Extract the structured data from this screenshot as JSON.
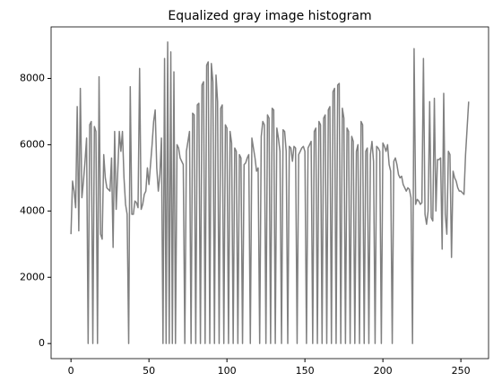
{
  "chart_data": {
    "type": "line",
    "title": "Equalized gray image histogram",
    "color": "#808080",
    "xlim": [
      -12.75,
      267.75
    ],
    "ylim": [
      -455,
      9555
    ],
    "xticks": [
      0,
      50,
      100,
      150,
      200,
      250
    ],
    "yticks": [
      0,
      2000,
      4000,
      6000,
      8000
    ],
    "x": [
      0,
      1,
      2,
      3,
      4,
      5,
      6,
      7,
      8,
      9,
      10,
      11,
      12,
      13,
      14,
      15,
      16,
      17,
      18,
      19,
      20,
      21,
      22,
      23,
      24,
      25,
      26,
      27,
      28,
      29,
      30,
      31,
      32,
      33,
      34,
      35,
      36,
      37,
      38,
      39,
      40,
      41,
      42,
      43,
      44,
      45,
      46,
      47,
      48,
      49,
      50,
      51,
      52,
      53,
      54,
      55,
      56,
      57,
      58,
      59,
      60,
      61,
      62,
      63,
      64,
      65,
      66,
      67,
      68,
      69,
      70,
      71,
      72,
      73,
      74,
      75,
      76,
      77,
      78,
      79,
      80,
      81,
      82,
      83,
      84,
      85,
      86,
      87,
      88,
      89,
      90,
      91,
      92,
      93,
      94,
      95,
      96,
      97,
      98,
      99,
      100,
      101,
      102,
      103,
      104,
      105,
      106,
      107,
      108,
      109,
      110,
      111,
      112,
      113,
      114,
      115,
      116,
      117,
      118,
      119,
      120,
      121,
      122,
      123,
      124,
      125,
      126,
      127,
      128,
      129,
      130,
      131,
      132,
      133,
      134,
      135,
      136,
      137,
      138,
      139,
      140,
      141,
      142,
      143,
      144,
      145,
      146,
      147,
      148,
      149,
      150,
      151,
      152,
      153,
      154,
      155,
      156,
      157,
      158,
      159,
      160,
      161,
      162,
      163,
      164,
      165,
      166,
      167,
      168,
      169,
      170,
      171,
      172,
      173,
      174,
      175,
      176,
      177,
      178,
      179,
      180,
      181,
      182,
      183,
      184,
      185,
      186,
      187,
      188,
      189,
      190,
      191,
      192,
      193,
      194,
      195,
      196,
      197,
      198,
      199,
      200,
      201,
      202,
      203,
      204,
      205,
      206,
      207,
      208,
      209,
      210,
      211,
      212,
      213,
      214,
      215,
      216,
      217,
      218,
      219,
      220,
      221,
      222,
      223,
      224,
      225,
      226,
      227,
      228,
      229,
      230,
      231,
      232,
      233,
      234,
      235,
      236,
      237,
      238,
      239,
      240,
      241,
      242,
      243,
      244,
      245,
      246,
      247,
      248,
      249,
      250,
      251,
      252,
      253,
      254,
      255
    ],
    "values": [
      3300,
      4900,
      4600,
      4100,
      7150,
      3400,
      7700,
      4400,
      4900,
      5500,
      6200,
      0,
      6600,
      6700,
      0,
      6550,
      6400,
      0,
      8050,
      3300,
      3150,
      5700,
      5000,
      4700,
      4650,
      4600,
      5600,
      2900,
      6400,
      4050,
      5200,
      6400,
      5800,
      6400,
      5000,
      4200,
      3900,
      0,
      7750,
      3900,
      3900,
      4300,
      4250,
      4100,
      8300,
      4050,
      4200,
      4500,
      4600,
      5300,
      4800,
      5400,
      6000,
      6700,
      7050,
      5300,
      4600,
      5100,
      6200,
      0,
      8600,
      0,
      9100,
      0,
      8800,
      0,
      8200,
      0,
      6000,
      5900,
      5600,
      5500,
      5400,
      0,
      5800,
      6100,
      6400,
      0,
      6950,
      6900,
      0,
      7200,
      7250,
      0,
      7800,
      7900,
      0,
      8400,
      8500,
      0,
      8450,
      7900,
      0,
      8100,
      7300,
      0,
      7100,
      7200,
      0,
      6600,
      6500,
      0,
      6400,
      6050,
      0,
      5900,
      5800,
      0,
      5700,
      5600,
      0,
      5400,
      5450,
      5600,
      5700,
      0,
      6200,
      5900,
      5600,
      5200,
      5300,
      0,
      6250,
      6700,
      6600,
      0,
      6900,
      6800,
      0,
      7100,
      7050,
      0,
      6500,
      6200,
      5800,
      0,
      6450,
      6400,
      5800,
      0,
      5950,
      5900,
      5500,
      5950,
      5900,
      0,
      5700,
      5800,
      5900,
      5950,
      5800,
      0,
      5900,
      6000,
      6100,
      0,
      6400,
      6500,
      0,
      6700,
      6600,
      0,
      6800,
      6900,
      0,
      7050,
      7150,
      0,
      7600,
      7700,
      0,
      7800,
      7850,
      0,
      7100,
      6800,
      0,
      6500,
      6400,
      0,
      6250,
      6100,
      0,
      5800,
      6000,
      0,
      6700,
      6600,
      0,
      5800,
      5900,
      0,
      5700,
      6100,
      5500,
      0,
      5950,
      5900,
      5800,
      0,
      6050,
      5950,
      5800,
      6000,
      5400,
      5200,
      0,
      5500,
      5600,
      5400,
      5100,
      5000,
      5050,
      4800,
      4700,
      4600,
      4700,
      4650,
      4400,
      0,
      8900,
      4200,
      4350,
      4300,
      4200,
      4250,
      8600,
      3900,
      3600,
      4000,
      7300,
      3800,
      3700,
      7400,
      4000,
      5550,
      5550,
      5600,
      2850,
      7550,
      3900,
      3300,
      5800,
      5700,
      2600,
      5200,
      5000,
      4900,
      4700,
      4600,
      4600,
      4550,
      4500,
      5700,
      6500,
      7300
    ]
  }
}
